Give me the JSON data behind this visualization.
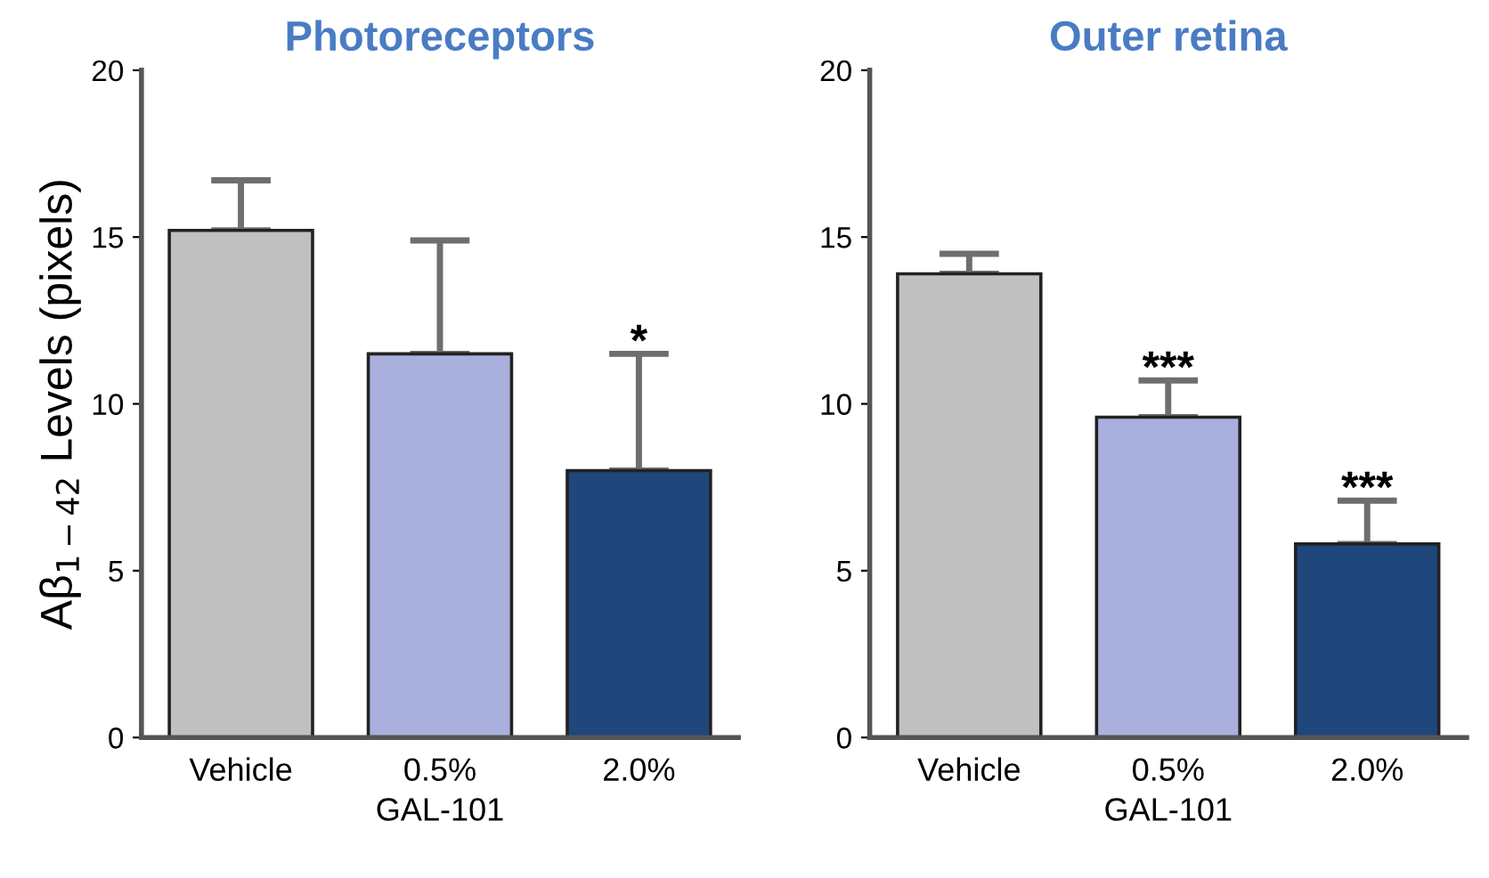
{
  "chart_data": [
    {
      "type": "bar",
      "title": "Photoreceptors",
      "xlabel": "GAL-101",
      "ylabel": "Aβ$_{1−42}$ Levels (pixels)",
      "categories": [
        "Vehicle",
        "0.5%",
        "2.0%"
      ],
      "values": [
        15.2,
        11.5,
        8.0
      ],
      "colors": [
        "#c0c0c0",
        "#a9b0de",
        "#1f477c"
      ],
      "errors": [
        [
          15.2,
          16.7
        ],
        [
          11.5,
          14.9
        ],
        [
          8.0,
          11.5
        ]
      ],
      "ylim": [
        0,
        20
      ],
      "yticks": [
        0,
        5,
        10,
        15,
        20
      ],
      "grid": false,
      "legend": false,
      "annotations": [
        "*"
      ]
    },
    {
      "type": "bar",
      "title": "Outer retina",
      "xlabel": "GAL-101",
      "categories": [
        "Vehicle",
        "0.5%",
        "2.0%"
      ],
      "values": [
        13.9,
        9.6,
        5.8
      ],
      "colors": [
        "#c0c0c0",
        "#a9b0de",
        "#1f477c"
      ],
      "errors": [
        [
          13.9,
          14.5
        ],
        [
          9.6,
          10.7
        ],
        [
          5.8,
          7.1
        ]
      ],
      "ylim": [
        0,
        20
      ],
      "yticks": [
        0,
        5,
        10,
        15,
        20
      ],
      "grid": false,
      "legend": false,
      "annotations": [
        "***",
        "***"
      ]
    }
  ]
}
